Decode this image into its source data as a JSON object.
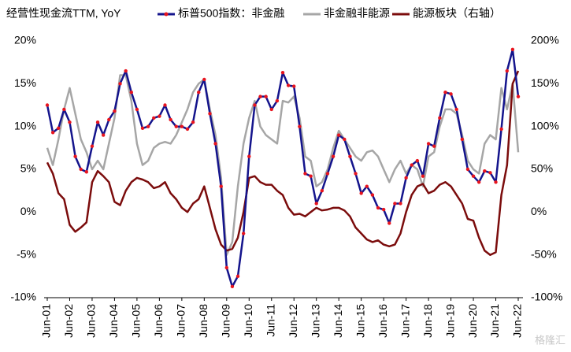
{
  "chart_data": {
    "type": "line",
    "title": "经营性现金流TTM, YoY",
    "watermark": "格隆汇",
    "categories": [
      "Jun-01",
      null,
      null,
      null,
      "Jun-02",
      null,
      null,
      null,
      "Jun-03",
      null,
      null,
      null,
      "Jun-04",
      null,
      null,
      null,
      "Jun-05",
      null,
      null,
      null,
      "Jun-06",
      null,
      null,
      null,
      "Jun-07",
      null,
      null,
      null,
      "Jun-08",
      null,
      null,
      null,
      "Jun-09",
      null,
      null,
      null,
      "Jun-10",
      null,
      null,
      null,
      "Jun-11",
      null,
      null,
      null,
      "Jun-12",
      null,
      null,
      null,
      "Jun-13",
      null,
      null,
      null,
      "Jun-14",
      null,
      null,
      null,
      "Jun-15",
      null,
      null,
      null,
      "Jun-16",
      null,
      null,
      null,
      "Jun-17",
      null,
      null,
      null,
      "Jun-18",
      null,
      null,
      null,
      "Jun-19",
      null,
      null,
      null,
      "Jun-20",
      null,
      null,
      null,
      "Jun-21",
      null,
      null,
      null,
      "Jun-22"
    ],
    "ylim": [
      -10,
      20
    ],
    "yticks": [
      {
        "value": -10,
        "label": "-10%"
      },
      {
        "value": -5,
        "label": "-5%"
      },
      {
        "value": 0,
        "label": "0%"
      },
      {
        "value": 5,
        "label": "5%"
      },
      {
        "value": 10,
        "label": "10%"
      },
      {
        "value": 15,
        "label": "15%"
      },
      {
        "value": 20,
        "label": "20%"
      }
    ],
    "y2lim": [
      -100,
      200
    ],
    "y2ticks": [
      {
        "value": -100,
        "label": "-100%"
      },
      {
        "value": -50,
        "label": "-50%"
      },
      {
        "value": 0,
        "label": "0%"
      },
      {
        "value": 50,
        "label": "50%"
      },
      {
        "value": 100,
        "label": "100%"
      },
      {
        "value": 150,
        "label": "150%"
      },
      {
        "value": 200,
        "label": "200%"
      }
    ],
    "grid": false,
    "series": [
      {
        "name": "标普500指数：非金融",
        "color": "#14148c",
        "marker_color": "#e8141e",
        "values": [
          12.5,
          9.3,
          9.8,
          12,
          10.5,
          6.5,
          5,
          4.7,
          7.7,
          10.5,
          9,
          10.8,
          11.8,
          15,
          16.5,
          14,
          12,
          9.8,
          10,
          11,
          11.2,
          12.5,
          10.8,
          10,
          10,
          9.7,
          10.5,
          14,
          15.5,
          11.5,
          8,
          3,
          -6.5,
          -8.7,
          -7.5,
          -2.5,
          6.5,
          12.5,
          13.5,
          13.5,
          12,
          13,
          16.3,
          14.8,
          14.7,
          10,
          4.5,
          4.2,
          1,
          2.5,
          4.5,
          6.5,
          9,
          8.5,
          6.5,
          4.5,
          2.2,
          3,
          2,
          0.5,
          0.3,
          -1.3,
          1,
          1,
          4,
          5.5,
          6,
          4.2,
          8,
          7.7,
          11,
          14,
          13.8,
          12,
          8.5,
          5,
          4.2,
          3.5,
          4.8,
          4.6,
          3.5,
          9.7,
          16.5,
          19,
          13.5
        ]
      },
      {
        "name": "非金融非能源",
        "color": "#a6a6a6",
        "values": [
          7.5,
          5.5,
          8.5,
          12,
          14.5,
          11.5,
          8.5,
          7,
          5,
          6,
          5,
          8,
          11,
          16,
          16,
          13,
          8,
          5.5,
          6,
          7.5,
          8,
          8.2,
          8,
          9,
          10.5,
          12,
          14,
          15,
          15.5,
          12,
          9,
          4,
          -5,
          -3.5,
          3,
          8,
          11,
          13,
          10,
          9,
          8.5,
          8,
          13,
          12.8,
          13.5,
          11,
          6.5,
          6,
          3,
          3.5,
          5,
          7.5,
          9.5,
          8.5,
          7.5,
          6.5,
          6,
          7,
          7.2,
          6.5,
          5,
          3.5,
          5,
          6,
          4.5,
          5.5,
          5,
          3,
          6.5,
          7,
          10,
          12,
          12,
          11.5,
          9,
          6,
          5,
          4.5,
          8,
          9,
          8.5,
          14.5,
          12,
          15,
          7
        ]
      },
      {
        "name": "能源板块（右轴）",
        "color": "#7b0c0c",
        "axis": "y2",
        "values": [
          58,
          45,
          22,
          15,
          -15,
          -23,
          -18,
          -12,
          35,
          48,
          42,
          35,
          12,
          8,
          25,
          35,
          40,
          38,
          35,
          28,
          30,
          35,
          22,
          15,
          5,
          0,
          10,
          15,
          30,
          5,
          -20,
          -38,
          -45,
          -43,
          -30,
          0,
          40,
          42,
          35,
          32,
          32,
          25,
          20,
          5,
          -3,
          -2,
          -5,
          0,
          5,
          2,
          3,
          5,
          5,
          2,
          -5,
          -18,
          -25,
          -32,
          -35,
          -33,
          -38,
          -40,
          -38,
          -25,
          0,
          20,
          30,
          33,
          22,
          25,
          32,
          35,
          30,
          20,
          10,
          -8,
          -10,
          -30,
          -45,
          -50,
          -47,
          20,
          55,
          150,
          165
        ]
      }
    ]
  }
}
